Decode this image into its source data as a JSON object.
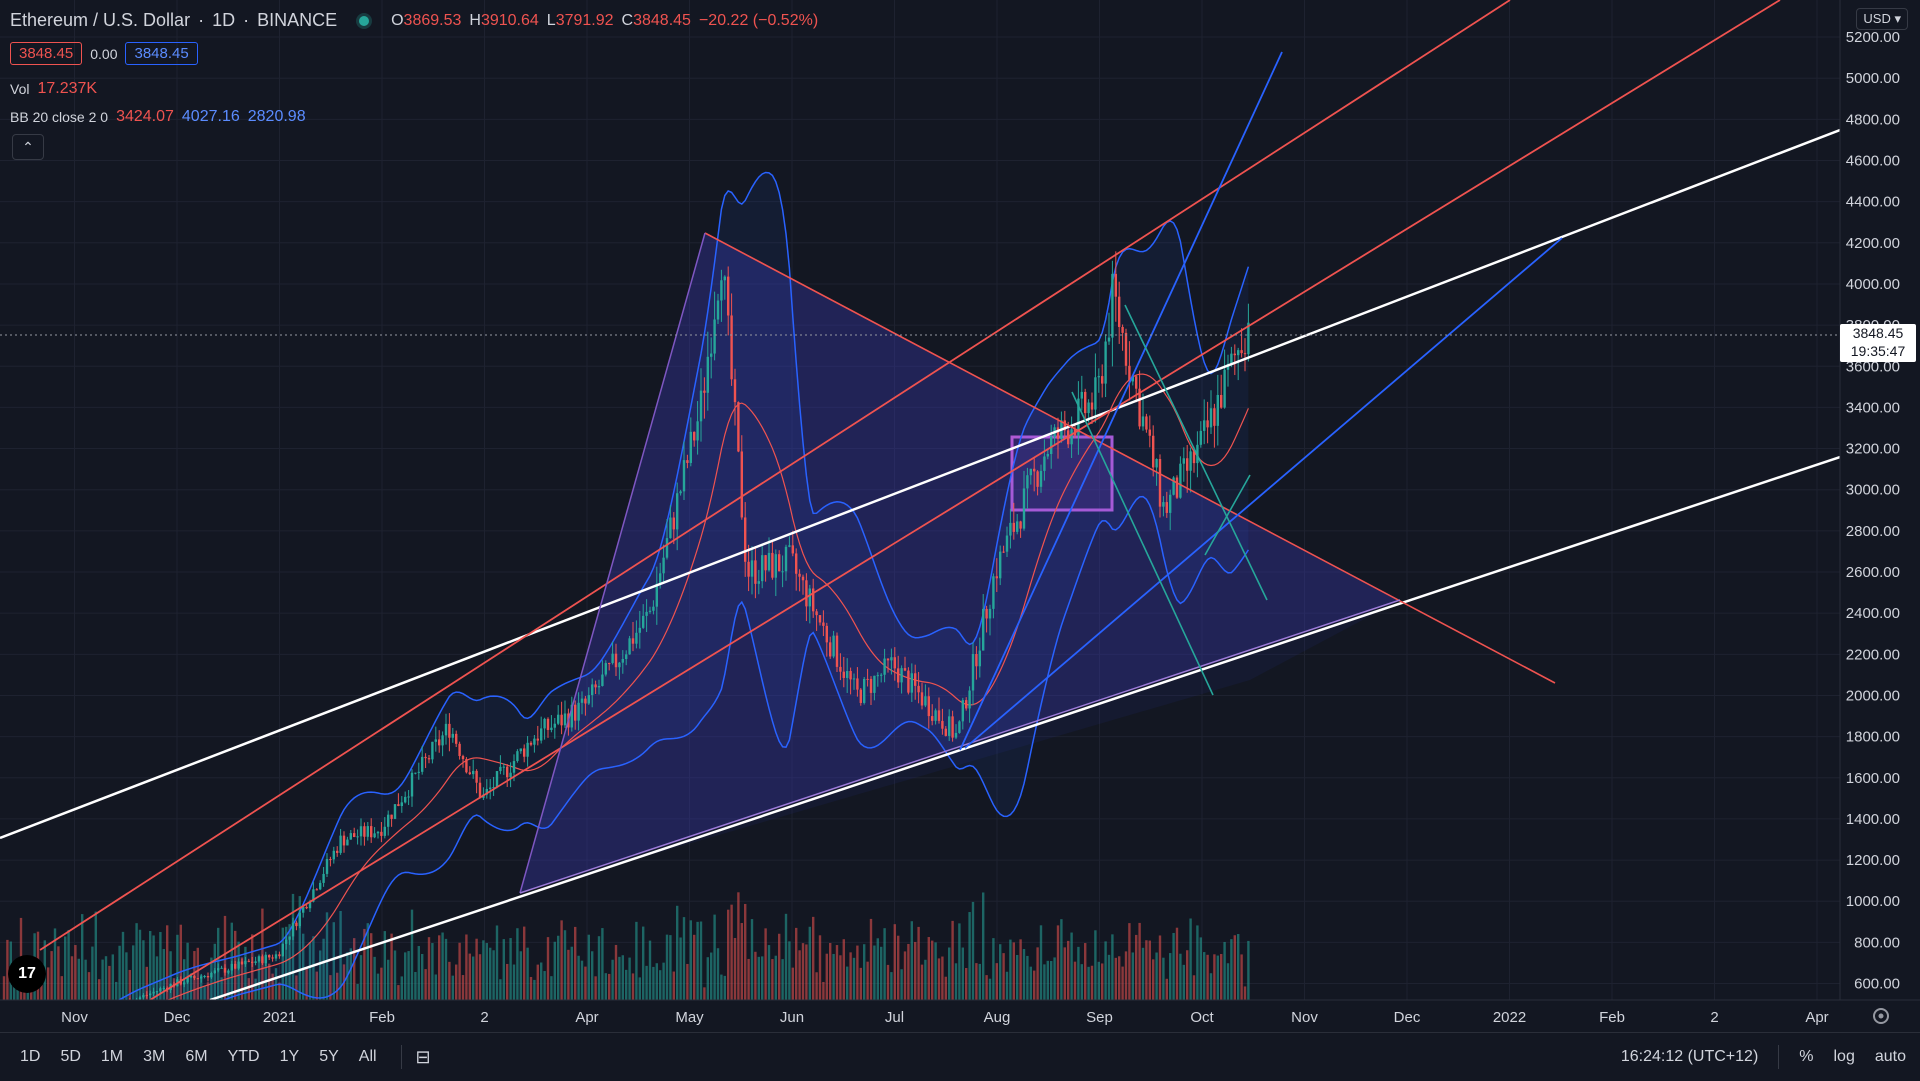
{
  "header": {
    "symbol": "Ethereum / U.S. Dollar",
    "interval": "1D",
    "exchange": "BINANCE",
    "open_label": "O",
    "open": "3869.53",
    "high_label": "H",
    "high": "3910.64",
    "low_label": "L",
    "low": "3791.92",
    "close_label": "C",
    "close": "3848.45",
    "change": "−20.22 (−0.52%)"
  },
  "price_boxes": {
    "sell": "3848.45",
    "spread": "0.00",
    "buy": "3848.45"
  },
  "volume": {
    "label": "Vol",
    "value": "17.237K"
  },
  "bb": {
    "label": "BB 20 close 2 0",
    "basis": "3424.07",
    "upper": "4027.16",
    "lower": "2820.98"
  },
  "collapse_icon": "chevron-up-icon",
  "currency_button": "USD",
  "last_price": {
    "price": "3848.45",
    "countdown": "19:35:47"
  },
  "bottom_bar": {
    "ranges": [
      "1D",
      "5D",
      "1M",
      "3M",
      "6M",
      "YTD",
      "1Y",
      "5Y",
      "All"
    ],
    "time": "16:24:12 (UTC+12)",
    "percent": "%",
    "log": "log",
    "auto": "auto"
  },
  "colors": {
    "background": "#131722",
    "up": "#26a69a",
    "down": "#ef5350",
    "bb_line": "#2962ff",
    "white_line": "#ffffff",
    "red_line": "#ef5350"
  },
  "chart_data": {
    "type": "candlestick",
    "title": "Ethereum / U.S. Dollar",
    "x_tick_labels": [
      "Nov",
      "Dec",
      "2021",
      "Feb",
      "2",
      "Apr",
      "May",
      "Jun",
      "Jul",
      "Aug",
      "Sep",
      "Oct",
      "Nov",
      "Dec",
      "2022",
      "Feb",
      "2",
      "Apr"
    ],
    "y_tick_labels": [
      "600.00",
      "800.00",
      "1000.00",
      "1200.00",
      "1400.00",
      "1600.00",
      "1800.00",
      "2000.00",
      "2200.00",
      "2400.00",
      "2600.00",
      "2800.00",
      "3000.00",
      "3200.00",
      "3400.00",
      "3600.00",
      "3800.00",
      "4000.00",
      "4200.00",
      "4400.00",
      "4600.00",
      "4800.00",
      "5000.00",
      "5200.00"
    ],
    "ylim": [
      520,
      5380
    ],
    "grid": true,
    "price_anchors": [
      [
        "Nov",
        400
      ],
      [
        "Dec",
        600
      ],
      [
        "2021",
        740
      ],
      [
        "Jan 20",
        1300
      ],
      [
        "Feb",
        1350
      ],
      [
        "Feb 20",
        1850
      ],
      [
        "Mar",
        1500
      ],
      [
        "Mar 15",
        1800
      ],
      [
        "Apr",
        1950
      ],
      [
        "Apr 20",
        2400
      ],
      [
        "May 5",
        3400
      ],
      [
        "May 11",
        4150
      ],
      [
        "May 19",
        2600
      ],
      [
        "Jun",
        2650
      ],
      [
        "Jun 20",
        2000
      ],
      [
        "Jul",
        2150
      ],
      [
        "Jul 20",
        1800
      ],
      [
        "Aug",
        2600
      ],
      [
        "Aug 15",
        3200
      ],
      [
        "Sep",
        3450
      ],
      [
        "Sep 5",
        3950
      ],
      [
        "Sep 20",
        2900
      ],
      [
        "Oct",
        3200
      ],
      [
        "Oct 15",
        3848.45
      ]
    ]
  }
}
